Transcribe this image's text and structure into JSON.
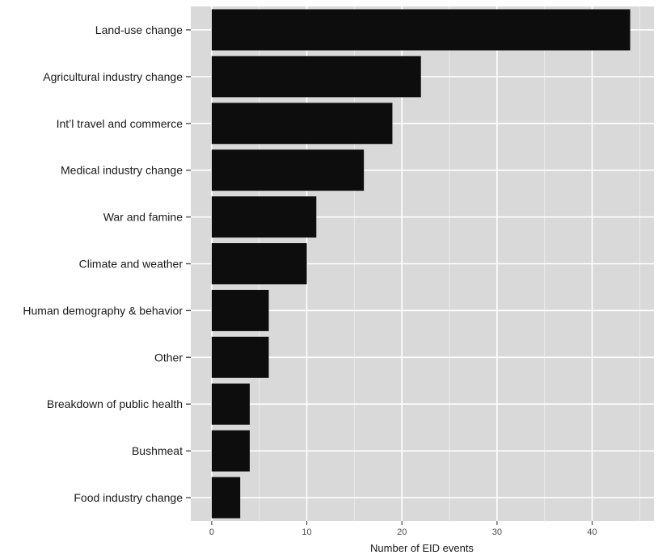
{
  "chart_data": {
    "type": "bar",
    "orientation": "horizontal",
    "categories": [
      "Land-use change",
      "Agricultural industry change",
      "Int’l travel and commerce",
      "Medical industry change",
      "War and famine",
      "Climate and weather",
      "Human demography & behavior",
      "Other",
      "Breakdown of public health",
      "Bushmeat",
      "Food industry change"
    ],
    "values": [
      44,
      22,
      19,
      16,
      11,
      10,
      6,
      6,
      4,
      4,
      3
    ],
    "title": "",
    "xlabel": "Number of EID events",
    "ylabel": "",
    "xlim": [
      -2.2,
      46.5
    ],
    "xticks": [
      0,
      10,
      20,
      30,
      40
    ],
    "grid": true,
    "colors": {
      "panel": "#d9d9d9",
      "grid_major": "#ffffff",
      "grid_minor": "#ebebeb",
      "bar": "#0d0d0d"
    }
  }
}
